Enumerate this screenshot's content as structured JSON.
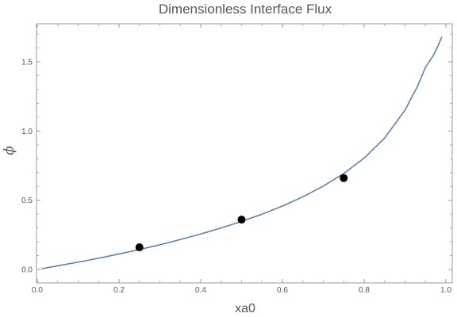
{
  "chart_data": {
    "type": "line",
    "title": "Dimensionless Interface Flux",
    "xlabel": "xa0",
    "ylabel": "ϕ",
    "xlim": [
      0.0,
      1.0
    ],
    "ylim": [
      -0.03,
      1.8
    ],
    "x_ticks": [
      0.0,
      0.2,
      0.4,
      0.6,
      0.8,
      1.0
    ],
    "y_ticks": [
      0.0,
      0.5,
      1.0,
      1.5
    ],
    "x_tick_labels": [
      "0.0",
      "0.2",
      "0.4",
      "0.6",
      "0.8",
      "1.0"
    ],
    "y_tick_labels": [
      "0.0",
      "0.5",
      "1.0",
      "1.5"
    ],
    "grid": false,
    "series": [
      {
        "x": [
          0.01,
          0.05,
          0.1,
          0.15,
          0.2,
          0.25,
          0.3,
          0.35,
          0.4,
          0.45,
          0.5,
          0.55,
          0.6,
          0.65,
          0.7,
          0.75,
          0.8,
          0.85,
          0.9,
          0.93,
          0.95,
          0.97,
          0.98,
          0.99
        ],
        "y": [
          0.005,
          0.026,
          0.053,
          0.081,
          0.112,
          0.144,
          0.178,
          0.216,
          0.256,
          0.3,
          0.347,
          0.399,
          0.458,
          0.525,
          0.602,
          0.693,
          0.805,
          0.949,
          1.151,
          1.32,
          1.46,
          1.55,
          1.61,
          1.68
        ],
        "color": "#5e81ac"
      },
      {
        "type": "scatter",
        "x": [
          0.25,
          0.5,
          0.75
        ],
        "y": [
          0.16,
          0.36,
          0.66
        ],
        "color": "#000000"
      }
    ]
  }
}
